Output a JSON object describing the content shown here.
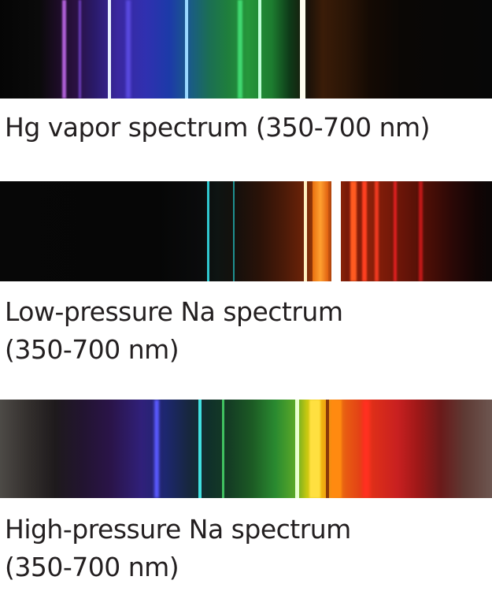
{
  "spectra": [
    {
      "caption_lines": [
        "Hg vapor spectrum (350-700 nm)"
      ],
      "line_colors": [
        "#c070e0",
        "#8040d0",
        "#e8f0ff",
        "#6a5cff",
        "#9ad8ff",
        "#40d870",
        "#c0ffd8",
        "#fffff0"
      ]
    },
    {
      "caption_lines": [
        "Low-pressure Na spectrum",
        "(350-700 nm)"
      ],
      "line_colors": [
        "#30c8d0",
        "#20a0a0",
        "#fff0c0",
        "#ffffff",
        "#ff6020",
        "#ff4020",
        "#e02020"
      ]
    },
    {
      "caption_lines": [
        "High-pressure Na spectrum",
        "(350-700 nm)"
      ],
      "line_colors": [
        "#6060ff",
        "#40e0e0",
        "#40c060",
        "#e8ffd0",
        "#ffe040",
        "#ff8010",
        "#ff3020"
      ]
    }
  ]
}
